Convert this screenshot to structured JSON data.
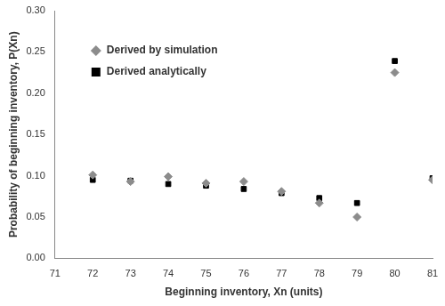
{
  "chart_data": {
    "type": "scatter",
    "x_label": "Beginning inventory, Xn (units)",
    "y_label": "Probability of beginning inventory, P(Xn)",
    "x": [
      72,
      73,
      74,
      75,
      76,
      77,
      78,
      79,
      80,
      81
    ],
    "series": [
      {
        "name": "Derived by simulation",
        "color": "#8c8c8c",
        "marker": "diamond",
        "values": [
          0.101,
          0.093,
          0.099,
          0.091,
          0.093,
          0.081,
          0.067,
          0.05,
          0.225,
          0.095
        ]
      },
      {
        "name": "Derived analytically",
        "color": "#000000",
        "marker": "square",
        "values": [
          0.095,
          0.094,
          0.09,
          0.088,
          0.084,
          0.079,
          0.073,
          0.067,
          0.239,
          0.097
        ]
      }
    ],
    "xlim": [
      71,
      81
    ],
    "xticks": [
      71,
      72,
      73,
      74,
      75,
      76,
      77,
      78,
      79,
      80,
      81
    ],
    "ylim": [
      0,
      0.3
    ],
    "yticks": [
      {
        "value": 0,
        "label": "0.00"
      },
      {
        "value": 0.05,
        "label": "0.05"
      },
      {
        "value": 0.1,
        "label": "0.10"
      },
      {
        "value": 0.15,
        "label": "0.15"
      },
      {
        "value": 0.2,
        "label": "0.20"
      },
      {
        "value": 0.25,
        "label": "0.25"
      },
      {
        "value": 0.3,
        "label": "0.30"
      }
    ],
    "grid": false,
    "legend": "upper left"
  }
}
